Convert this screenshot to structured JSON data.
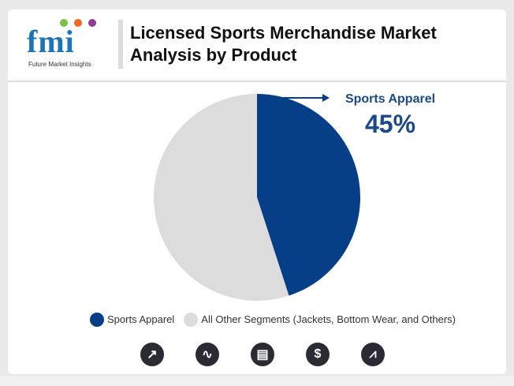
{
  "header": {
    "title_line1": "Licensed Sports Merchandise Market",
    "title_line2": "Analysis by Product",
    "logo_text": "fmi",
    "logo_subtext": "Future Market Insights"
  },
  "chart_data": {
    "type": "pie",
    "series": [
      {
        "name": "Sports Apparel",
        "value": 45,
        "color": "#063f87"
      },
      {
        "name": "All Other Segments (Jackets, Bottom Wear, and Others)",
        "value": 55,
        "color": "#dcdcdc"
      }
    ],
    "callout": {
      "label": "Sports Apparel",
      "value": "45%"
    },
    "legend": "bottom"
  },
  "icons": [
    "growth-chart-icon",
    "market-analysis-icon",
    "report-icon",
    "dollar-icon",
    "area-chart-icon"
  ],
  "icon_glyphs": [
    "↗",
    "∿",
    "▤",
    "$",
    "⩘"
  ]
}
